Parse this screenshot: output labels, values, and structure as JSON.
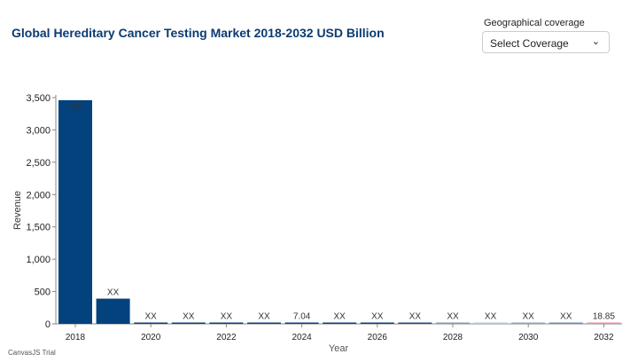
{
  "header": {
    "title": "Global Hereditary Cancer Testing Market 2018-2032 USD Billion"
  },
  "filter": {
    "label": "Geographical coverage",
    "selected": "Select Coverage",
    "icon": "chevron-down-icon"
  },
  "watermark": "CanvasJS Trial",
  "chart_data": {
    "type": "bar",
    "title": "Global Hereditary Cancer Testing Market 2018-2032 USD Billion",
    "xlabel": "Year",
    "ylabel": "Revenue",
    "ylim": [
      0,
      3500
    ],
    "yticks": [
      0,
      500,
      1000,
      1500,
      2000,
      2500,
      3000,
      3500
    ],
    "xticks": [
      2018,
      2020,
      2022,
      2024,
      2026,
      2028,
      2030,
      2032
    ],
    "categories": [
      2018,
      2019,
      2020,
      2021,
      2022,
      2023,
      2024,
      2025,
      2026,
      2027,
      2028,
      2029,
      2030,
      2031,
      2032
    ],
    "values": [
      3460,
      390,
      1,
      1.5,
      2,
      3,
      7.04,
      8,
      9,
      10,
      11,
      12,
      14,
      16,
      18.85
    ],
    "labels": [
      "XX",
      "XX",
      "XX",
      "XX",
      "XX",
      "XX",
      "7.04",
      "XX",
      "XX",
      "XX",
      "XX",
      "XX",
      "XX",
      "XX",
      "18.85"
    ],
    "colors": [
      "#04427e",
      "#04427e",
      "#04427e",
      "#04427e",
      "#04427e",
      "#04427e",
      "#04427e",
      "#04427e",
      "#04427e",
      "#1f4f84",
      "#7f99bd",
      "#b3c7e0",
      "#8aa5c9",
      "#6d8db9",
      "#f0899a"
    ],
    "grid": false,
    "legend": "none"
  }
}
